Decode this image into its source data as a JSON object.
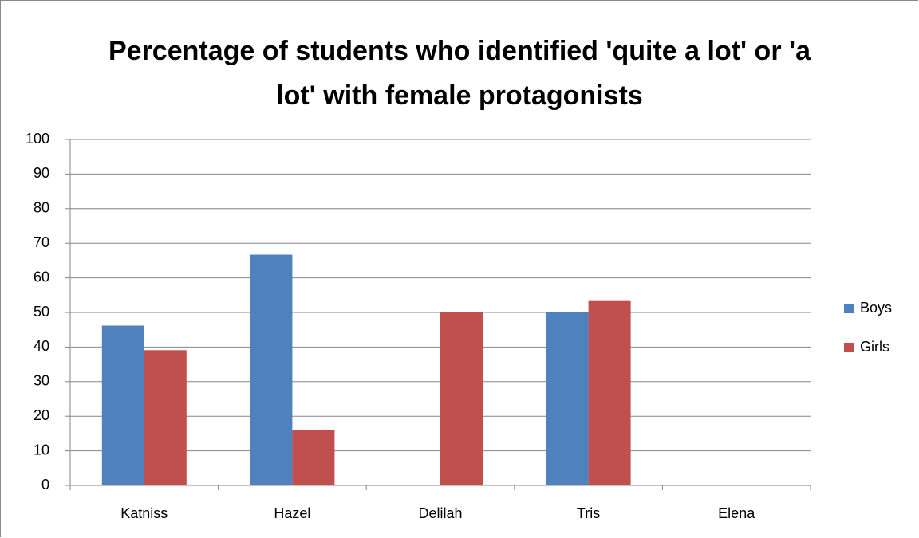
{
  "chart_data": {
    "type": "bar",
    "title": "Percentage of students who identified 'quite a lot' or 'a lot' with female protagonists",
    "categories": [
      "Katniss",
      "Hazel",
      "Delilah",
      "Tris",
      "Elena"
    ],
    "series": [
      {
        "name": "Boys",
        "color": "#4f81bd",
        "values": [
          46.2,
          66.7,
          0,
          50,
          0
        ]
      },
      {
        "name": "Girls",
        "color": "#c0504d",
        "values": [
          39.1,
          16,
          50,
          53.3,
          0
        ]
      }
    ],
    "ylim": [
      0,
      100
    ],
    "yticks": [
      0,
      10,
      20,
      30,
      40,
      50,
      60,
      70,
      80,
      90,
      100
    ],
    "grid": true,
    "legend": "right"
  }
}
